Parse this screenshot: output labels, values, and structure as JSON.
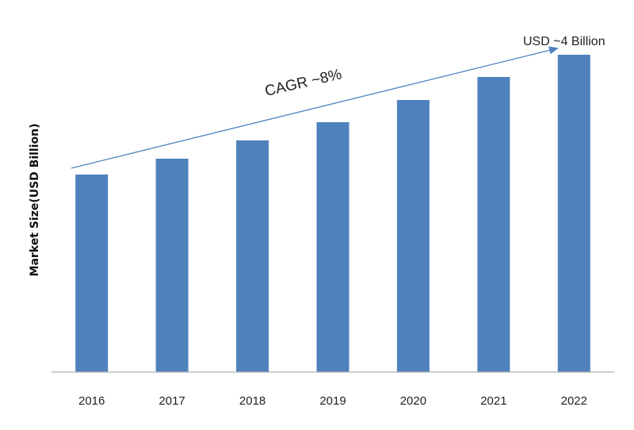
{
  "chart_data": {
    "type": "bar",
    "title": "",
    "xlabel": "",
    "ylabel": "Market Size(USD Billion)",
    "categories": [
      "2016",
      "2017",
      "2018",
      "2019",
      "2020",
      "2021",
      "2022"
    ],
    "values": [
      2.49,
      2.69,
      2.92,
      3.15,
      3.43,
      3.72,
      4.0
    ],
    "ylim": [
      0,
      4.1
    ],
    "grid": false,
    "y_ticks_visible": false,
    "bar_color": "#4f81bd",
    "annotations": {
      "cagr_label": "CAGR ~8%",
      "end_label": "USD ~4 Billion",
      "arrow_color": "#4f81bd"
    }
  }
}
